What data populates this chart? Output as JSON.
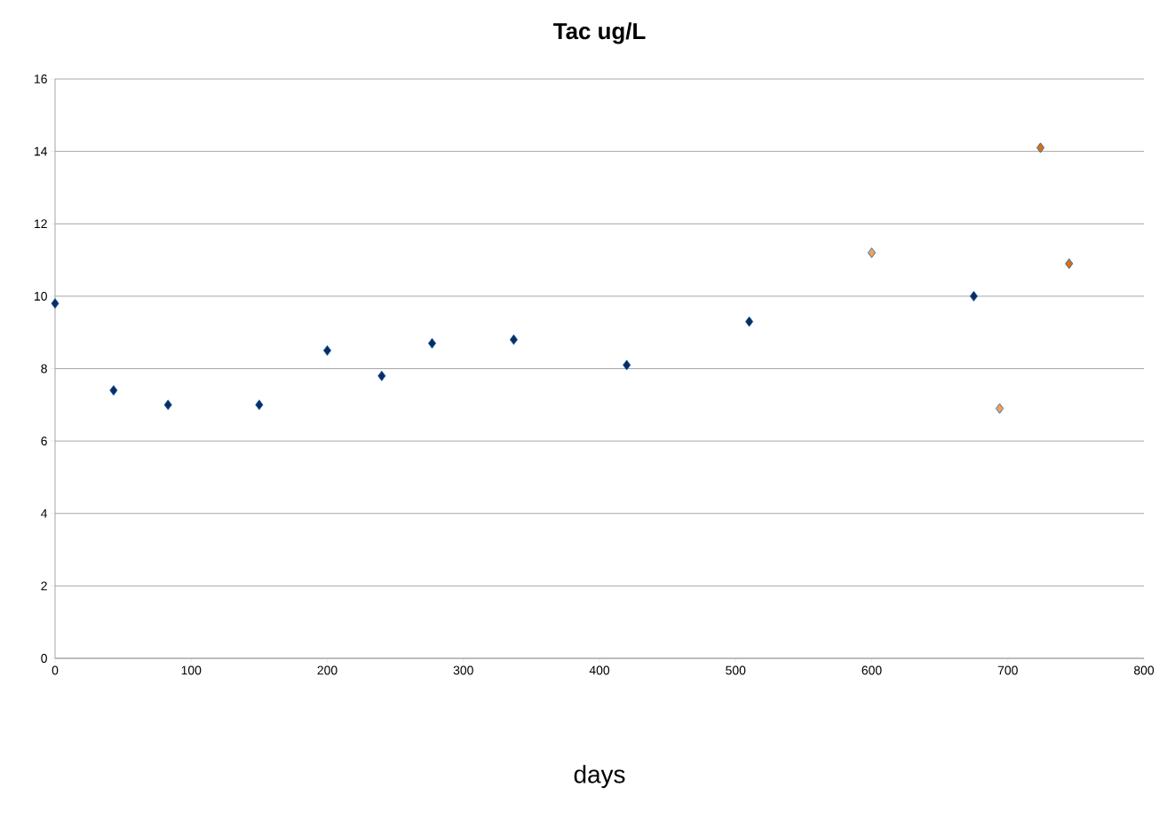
{
  "chart_data": {
    "type": "scatter",
    "title": "Tac ug/L",
    "xlabel": "days",
    "series": [
      {
        "color": "#0f2a5c",
        "x": [
          0,
          43,
          83,
          150,
          200,
          240,
          277,
          337,
          420,
          510,
          675
        ],
        "values": [
          9.8,
          7.4,
          7.0,
          7.0,
          8.5,
          7.8,
          8.7,
          8.8,
          8.1,
          9.3,
          10.0
        ]
      },
      {
        "color": "#f79f56",
        "x": [
          600,
          694
        ],
        "values": [
          11.2,
          6.9
        ]
      },
      {
        "color": "#e36c09",
        "x": [
          724,
          745
        ],
        "values": [
          14.1,
          10.9
        ]
      }
    ],
    "xlim": [
      0,
      800
    ],
    "xticks": [
      0,
      100,
      200,
      300,
      400,
      500,
      600,
      700,
      800
    ],
    "ylim": [
      0,
      16
    ],
    "yticks": [
      0,
      2,
      4,
      6,
      8,
      10,
      12,
      14,
      16
    ],
    "grid": "y",
    "marker": "diamond"
  }
}
